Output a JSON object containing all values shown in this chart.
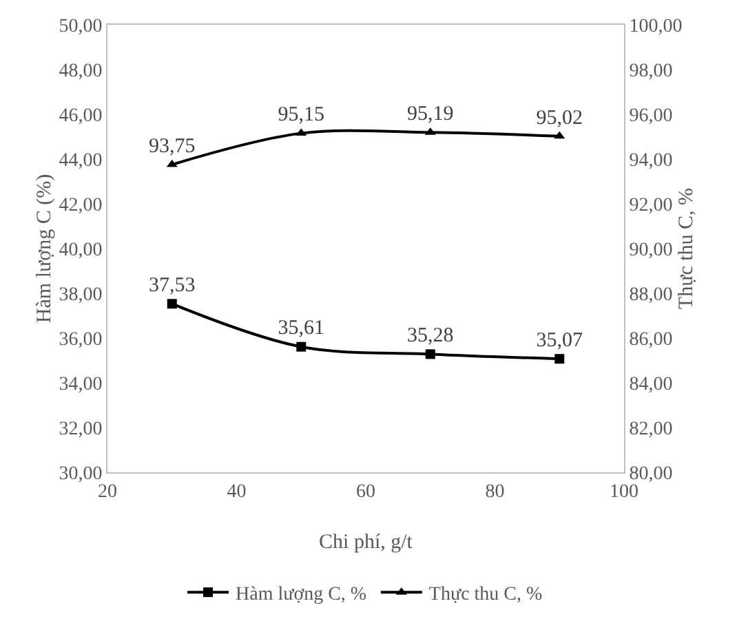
{
  "chart_data": {
    "type": "line",
    "xlabel": "Chi phí, g/t",
    "ylabel": "Hàm lượng C (%)",
    "y2label": "Thực thu C, %",
    "x": [
      30,
      50,
      70,
      90
    ],
    "series": [
      {
        "name": "Hàm lượng C, %",
        "color": "#000000",
        "values": [
          37.53,
          35.61,
          35.28,
          35.07
        ],
        "marker": "square",
        "value_labels": [
          "37,53",
          "35,61",
          "35,28",
          "35,07"
        ]
      },
      {
        "name": "Thực thu C, %",
        "color": "#000000",
        "values": [
          93.75,
          95.15,
          95.19,
          95.02
        ],
        "axis": "y2",
        "marker": "triangle",
        "value_labels": [
          "93,75",
          "95,15",
          "95,19",
          "95,02"
        ]
      }
    ],
    "xlim": [
      20,
      100
    ],
    "xticks": [
      20,
      40,
      60,
      80,
      100
    ],
    "ylim": [
      30,
      50
    ],
    "yticks": [
      {
        "value": 30,
        "label": "30,00"
      },
      {
        "value": 32,
        "label": "32,00"
      },
      {
        "value": 34,
        "label": "34,00"
      },
      {
        "value": 36,
        "label": "36,00"
      },
      {
        "value": 38,
        "label": "38,00"
      },
      {
        "value": 40,
        "label": "40,00"
      },
      {
        "value": 42,
        "label": "42,00"
      },
      {
        "value": 44,
        "label": "44,00"
      },
      {
        "value": 46,
        "label": "46,00"
      },
      {
        "value": 48,
        "label": "48,00"
      },
      {
        "value": 50,
        "label": "50,00"
      }
    ],
    "y2lim": [
      80,
      100
    ],
    "y2ticks": [
      {
        "value": 80,
        "label": "80,00"
      },
      {
        "value": 82,
        "label": "82,00"
      },
      {
        "value": 84,
        "label": "84,00"
      },
      {
        "value": 86,
        "label": "86,00"
      },
      {
        "value": 88,
        "label": "88,00"
      },
      {
        "value": 90,
        "label": "90,00"
      },
      {
        "value": 92,
        "label": "92,00"
      },
      {
        "value": 94,
        "label": "94,00"
      },
      {
        "value": 96,
        "label": "96,00"
      },
      {
        "value": 98,
        "label": "98,00"
      },
      {
        "value": 100,
        "label": "100,00"
      }
    ],
    "grid": false,
    "legend": "bottom",
    "line_style": "solid"
  }
}
